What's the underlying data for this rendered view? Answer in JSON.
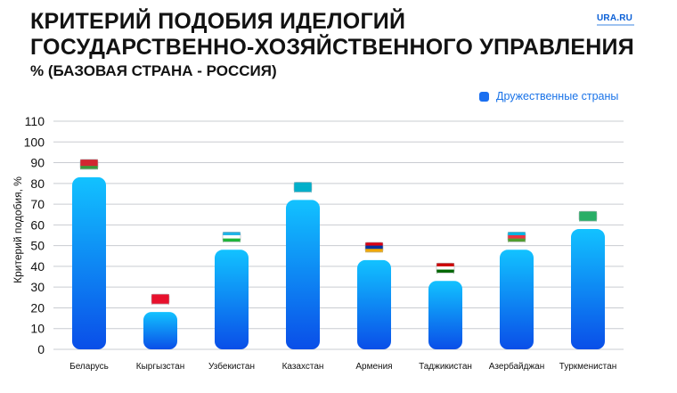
{
  "header": {
    "title_line1": "КРИТЕРИЙ ПОДОБИЯ ИДЕЛОГИЙ",
    "title_line2": "ГОСУДАРСТВЕННО-ХОЗЯЙСТВЕННОГО УПРАВЛЕНИЯ",
    "subtitle": "% (БАЗОВАЯ СТРАНА - РОССИЯ)",
    "logo": "URA.RU"
  },
  "colors": {
    "bar_top": "#12c2ff",
    "bar_bottom": "#0a4ee8",
    "grid": "#c9ccd1",
    "legend": "#1a6ff0"
  },
  "chart_data": {
    "type": "bar",
    "title": "КРИТЕРИЙ ПОДОБИЯ ИДЕЛОГИЙ ГОСУДАРСТВЕННО-ХОЗЯЙСТВЕННОГО УПРАВЛЕНИЯ",
    "subtitle": "% (БАЗОВАЯ СТРАНА - РОССИЯ)",
    "xlabel": "",
    "ylabel": "Критерий подобия, %",
    "ylim": [
      0,
      110
    ],
    "yticks": [
      0,
      10,
      20,
      30,
      40,
      50,
      60,
      70,
      80,
      90,
      100,
      110
    ],
    "grid": true,
    "legend_position": "top-right",
    "categories": [
      "Беларусь",
      "Кыргызстан",
      "Узбекистан",
      "Казахстан",
      "Армения",
      "Таджикистан",
      "Азербайджан",
      "Туркменистан"
    ],
    "series": [
      {
        "name": "Дружественные страны",
        "values": [
          83,
          18,
          48,
          72,
          43,
          33,
          48,
          58
        ]
      }
    ],
    "flag_icons": [
      "belarus-flag-icon",
      "kyrgyzstan-flag-icon",
      "uzbekistan-flag-icon",
      "kazakhstan-flag-icon",
      "armenia-flag-icon",
      "tajikistan-flag-icon",
      "azerbaijan-flag-icon",
      "turkmenistan-flag-icon"
    ]
  }
}
